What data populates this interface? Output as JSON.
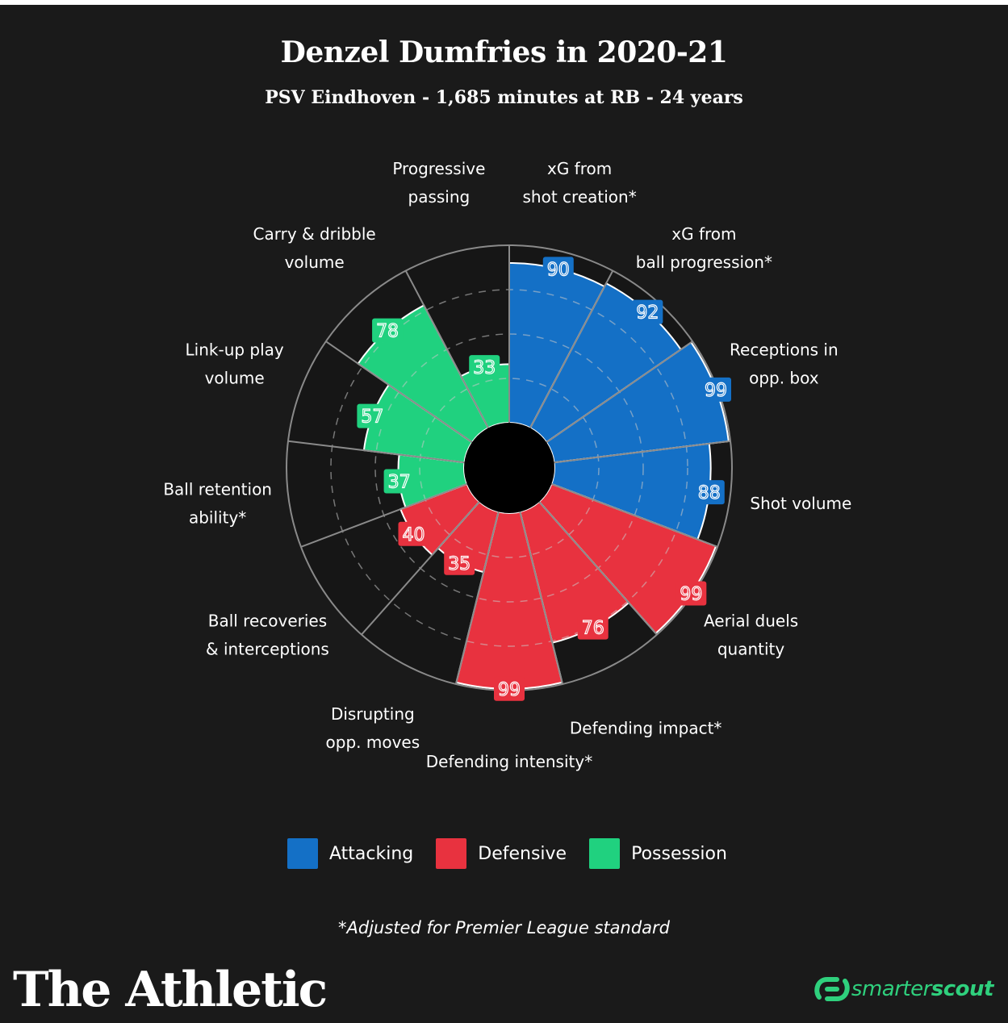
{
  "header": {
    "title": "Denzel Dumfries in 2020-21",
    "subtitle": "PSV Eindhoven - 1,685 minutes at RB - 24 years"
  },
  "colors": {
    "attacking": "#1470c6",
    "defensive": "#e8323f",
    "possession": "#20d17f",
    "background": "#1a1a1a",
    "grid": "#8a8a8a"
  },
  "chart_data": {
    "type": "polar-bar",
    "title": "Denzel Dumfries in 2020-21",
    "subtitle": "PSV Eindhoven - 1,685 minutes at RB - 24 years",
    "rlim": [
      0,
      100
    ],
    "start_direction": "north",
    "direction": "clockwise",
    "categories": [
      {
        "label": [
          "xG from",
          "shot creation*"
        ],
        "value": 90,
        "group": "attacking"
      },
      {
        "label": [
          "xG from",
          "ball progression*"
        ],
        "value": 92,
        "group": "attacking"
      },
      {
        "label": [
          "Receptions in",
          "opp. box"
        ],
        "value": 99,
        "group": "attacking"
      },
      {
        "label": [
          "Shot volume"
        ],
        "value": 88,
        "group": "attacking"
      },
      {
        "label": [
          "Aerial duels",
          "quantity"
        ],
        "value": 99,
        "group": "defensive"
      },
      {
        "label": [
          "Defending impact*"
        ],
        "value": 76,
        "group": "defensive"
      },
      {
        "label": [
          "Defending intensity*"
        ],
        "value": 99,
        "group": "defensive"
      },
      {
        "label": [
          "Disrupting",
          "opp. moves"
        ],
        "value": 35,
        "group": "defensive"
      },
      {
        "label": [
          "Ball recoveries",
          "& interceptions"
        ],
        "value": 40,
        "group": "defensive"
      },
      {
        "label": [
          "Ball retention",
          "ability*"
        ],
        "value": 37,
        "group": "possession"
      },
      {
        "label": [
          "Link-up play",
          "volume"
        ],
        "value": 57,
        "group": "possession"
      },
      {
        "label": [
          "Carry & dribble",
          "volume"
        ],
        "value": 78,
        "group": "possession"
      },
      {
        "label": [
          "Progressive",
          "passing"
        ],
        "value": 33,
        "group": "possession"
      }
    ]
  },
  "legend": {
    "items": [
      {
        "label": "Attacking",
        "key": "attacking"
      },
      {
        "label": "Defensive",
        "key": "defensive"
      },
      {
        "label": "Possession",
        "key": "possession"
      }
    ]
  },
  "footer": {
    "footnote": "*Adjusted for Premier League standard",
    "brand": "The Athletic",
    "logo_part1": "smarter",
    "logo_part2": "scout"
  }
}
